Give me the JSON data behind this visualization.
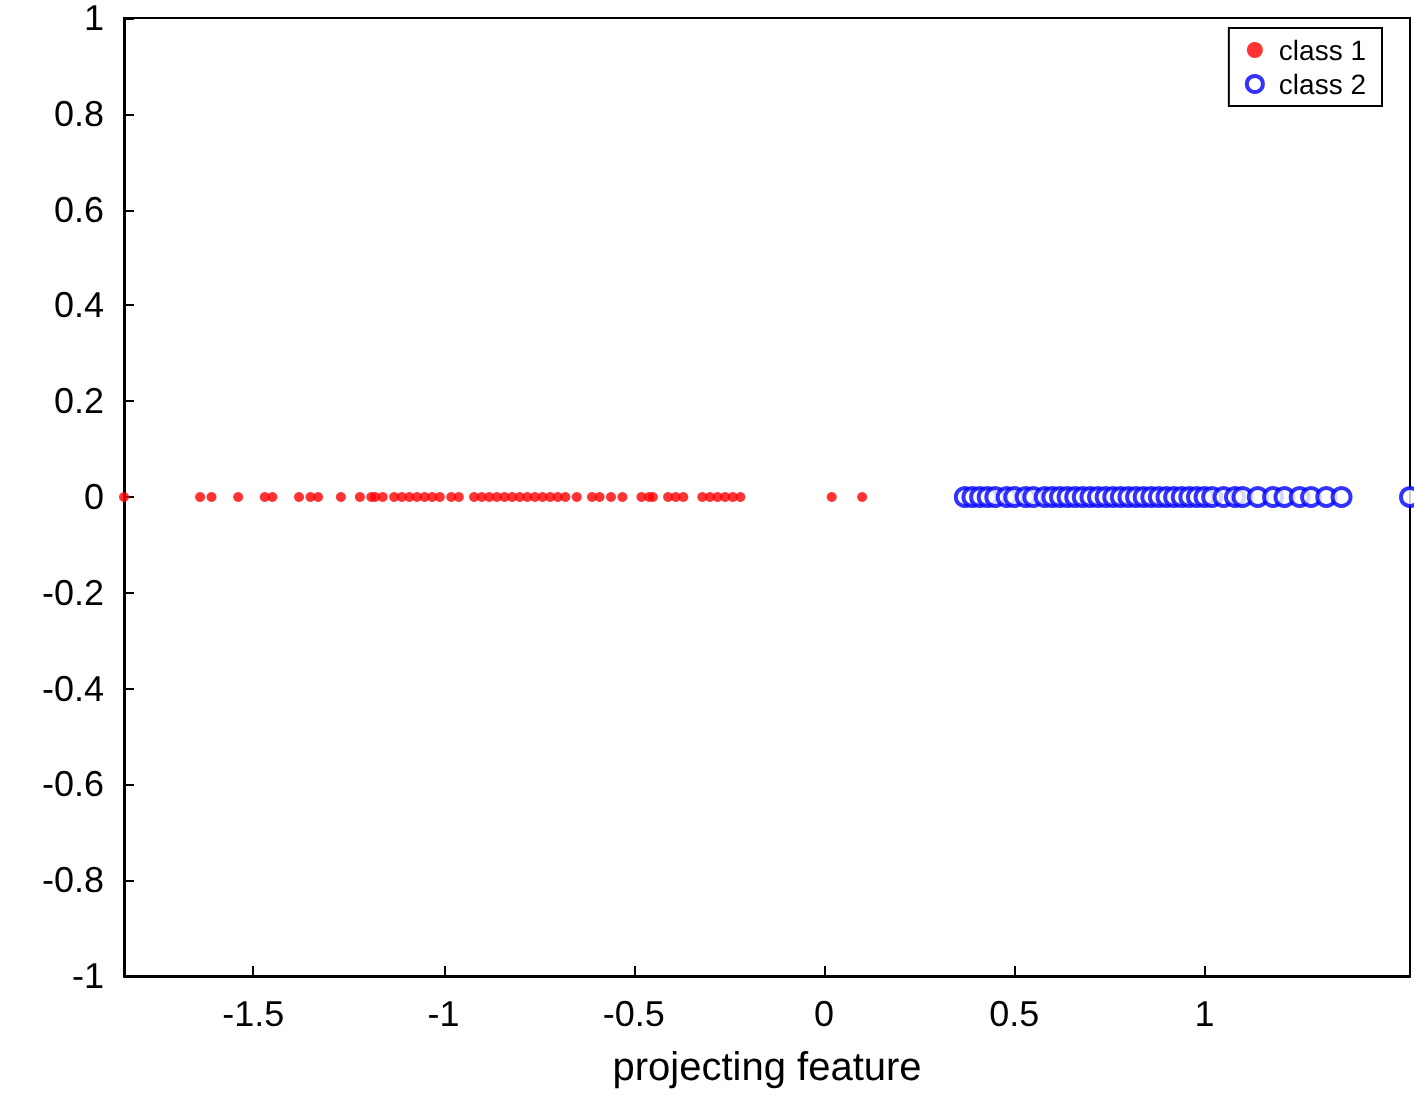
{
  "chart_data": {
    "type": "scatter",
    "xlabel": "projecting feature",
    "xlim": [
      -1.84,
      1.54
    ],
    "xticks": [
      -1.5,
      -1,
      -0.5,
      0,
      0.5,
      1
    ],
    "ylim": [
      -1,
      1
    ],
    "yticks": [
      -1,
      -0.8,
      -0.6,
      -0.4,
      -0.2,
      0,
      0.2,
      0.4,
      0.6,
      0.8,
      1
    ],
    "grid": false,
    "legend": "top right",
    "marker": "circle",
    "series": [
      {
        "name": "class 1",
        "color": "#ff0000",
        "x": [
          -1.84,
          -1.64,
          -1.61,
          -1.54,
          -1.47,
          -1.45,
          -1.38,
          -1.35,
          -1.33,
          -1.27,
          -1.22,
          -1.19,
          -1.18,
          -1.16,
          -1.13,
          -1.11,
          -1.09,
          -1.07,
          -1.05,
          -1.03,
          -1.01,
          -0.98,
          -0.96,
          -0.92,
          -0.9,
          -0.88,
          -0.86,
          -0.84,
          -0.82,
          -0.8,
          -0.78,
          -0.76,
          -0.74,
          -0.72,
          -0.7,
          -0.68,
          -0.65,
          -0.61,
          -0.59,
          -0.56,
          -0.53,
          -0.48,
          -0.46,
          -0.45,
          -0.41,
          -0.39,
          -0.37,
          -0.32,
          -0.3,
          -0.28,
          -0.26,
          -0.24,
          -0.22,
          0.02,
          0.1
        ],
        "values": [
          0,
          0,
          0,
          0,
          0,
          0,
          0,
          0,
          0,
          0,
          0,
          0,
          0,
          0,
          0,
          0,
          0,
          0,
          0,
          0,
          0,
          0,
          0,
          0,
          0,
          0,
          0,
          0,
          0,
          0,
          0,
          0,
          0,
          0,
          0,
          0,
          0,
          0,
          0,
          0,
          0,
          0,
          0,
          0,
          0,
          0,
          0,
          0,
          0,
          0,
          0,
          0,
          0,
          0,
          0
        ]
      },
      {
        "name": "class 2",
        "color": "#0000ff",
        "x": [
          0.37,
          0.39,
          0.41,
          0.43,
          0.45,
          0.48,
          0.5,
          0.53,
          0.55,
          0.58,
          0.6,
          0.62,
          0.64,
          0.66,
          0.68,
          0.7,
          0.72,
          0.74,
          0.76,
          0.78,
          0.8,
          0.82,
          0.84,
          0.86,
          0.88,
          0.9,
          0.92,
          0.94,
          0.96,
          0.98,
          1.0,
          1.02,
          1.05,
          1.08,
          1.1,
          1.14,
          1.18,
          1.21,
          1.25,
          1.28,
          1.32,
          1.36,
          1.54
        ],
        "values": [
          0,
          0,
          0,
          0,
          0,
          0,
          0,
          0,
          0,
          0,
          0,
          0,
          0,
          0,
          0,
          0,
          0,
          0,
          0,
          0,
          0,
          0,
          0,
          0,
          0,
          0,
          0,
          0,
          0,
          0,
          0,
          0,
          0,
          0,
          0,
          0,
          0,
          0,
          0,
          0,
          0,
          0,
          0
        ]
      }
    ]
  }
}
